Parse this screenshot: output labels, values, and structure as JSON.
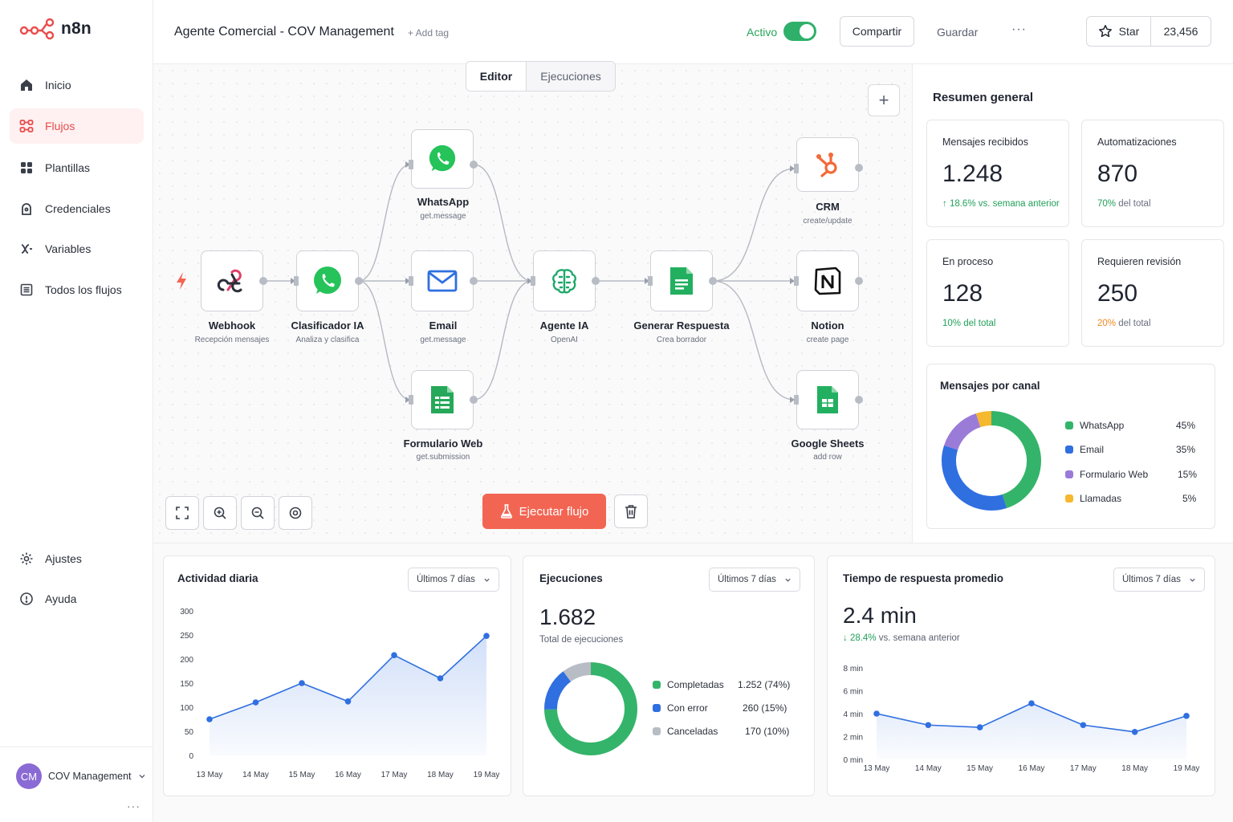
{
  "app": {
    "name": "n8n",
    "brand_color": "#ea4b4b"
  },
  "sidebar": {
    "items": [
      {
        "label": "Inicio",
        "icon": "home-icon"
      },
      {
        "label": "Flujos",
        "icon": "flows-icon",
        "active": true
      },
      {
        "label": "Plantillas",
        "icon": "templates-icon"
      },
      {
        "label": "Credenciales",
        "icon": "credentials-icon"
      },
      {
        "label": "Variables",
        "icon": "variables-icon"
      },
      {
        "label": "Todos los flujos",
        "icon": "all-flows-icon"
      }
    ],
    "bottom_items": [
      {
        "label": "Ajustes",
        "icon": "settings-icon"
      },
      {
        "label": "Ayuda",
        "icon": "help-icon"
      }
    ],
    "user": {
      "initials": "CM",
      "name": "COV Management"
    }
  },
  "header": {
    "title": "Agente Comercial - COV Management",
    "add_tag": "+ Add tag",
    "active_label": "Activo",
    "active": true,
    "share": "Compartir",
    "save": "Guardar",
    "more": "···",
    "star_label": "Star",
    "star_count": "23,456"
  },
  "canvas": {
    "tabs": [
      "Editor",
      "Ejecuciones"
    ],
    "selected_tab": "Editor",
    "nodes": {
      "webhook": {
        "label": "Webhook",
        "sub": "Recepción mensajes"
      },
      "classifier": {
        "label": "Clasificador IA",
        "sub": "Analiza y clasifica"
      },
      "whatsapp": {
        "label": "WhatsApp",
        "sub": "get.message"
      },
      "email": {
        "label": "Email",
        "sub": "get.message"
      },
      "form": {
        "label": "Formulario Web",
        "sub": "get.submission"
      },
      "agent": {
        "label": "Agente IA",
        "sub": "OpenAI"
      },
      "response": {
        "label": "Generar Respuesta",
        "sub": "Crea borrador"
      },
      "crm": {
        "label": "CRM",
        "sub": "create/update"
      },
      "notion": {
        "label": "Notion",
        "sub": "create page"
      },
      "sheets": {
        "label": "Google Sheets",
        "sub": "add row"
      }
    },
    "run_button": "Ejecutar flujo"
  },
  "summary": {
    "title": "Resumen general",
    "stats": [
      {
        "label": "Mensajes recibidos",
        "value": "1.248",
        "note_hi": "↑ 18.6% vs. semana anterior",
        "note_rest": ""
      },
      {
        "label": "Automatizaciones",
        "value": "870",
        "note_hi": "70%",
        "note_rest": " del total"
      },
      {
        "label": "En proceso",
        "value": "128",
        "note_hi": "10% del total",
        "note_rest": ""
      },
      {
        "label": "Requieren revisión",
        "value": "250",
        "note_hi": "20%",
        "note_rest": " del total"
      }
    ],
    "channels": {
      "title": "Mensajes por canal",
      "items": [
        {
          "name": "WhatsApp",
          "pct": "45%",
          "value": 45,
          "color": "#34b46a"
        },
        {
          "name": "Email",
          "pct": "35%",
          "value": 35,
          "color": "#2f6fe0"
        },
        {
          "name": "Formulario Web",
          "pct": "15%",
          "value": 15,
          "color": "#9b7bd8"
        },
        {
          "name": "Llamadas",
          "pct": "5%",
          "value": 5,
          "color": "#f5b82e"
        }
      ]
    }
  },
  "activity": {
    "title": "Actividad diaria",
    "range": "Últimos 7 días",
    "chart_data": {
      "type": "area",
      "categories": [
        "13 May",
        "14 May",
        "15 May",
        "16 May",
        "17 May",
        "18 May",
        "19 May"
      ],
      "values": [
        75,
        110,
        150,
        112,
        208,
        160,
        248
      ],
      "yticks": [
        "300",
        "250",
        "200",
        "150",
        "100",
        "50",
        "0"
      ],
      "ylim": [
        0,
        300
      ],
      "color": "#2f6fe0"
    }
  },
  "executions": {
    "title": "Ejecuciones",
    "range": "Últimos 7 días",
    "total": "1.682",
    "total_label": "Total de ejecuciones",
    "items": [
      {
        "name": "Completadas",
        "display": "1.252 (74%)",
        "value": 74,
        "color": "#34b46a"
      },
      {
        "name": "Con error",
        "display": "260 (15%)",
        "value": 15,
        "color": "#2f6fe0"
      },
      {
        "name": "Canceladas",
        "display": "170 (10%)",
        "value": 10,
        "color": "#b8bcc5"
      }
    ]
  },
  "response_time": {
    "title": "Tiempo de respuesta promedio",
    "range": "Últimos 7 días",
    "value": "2.4 min",
    "change_hi": "↓ 28.4%",
    "change_rest": " vs. semana anterior",
    "chart_data": {
      "type": "line",
      "categories": [
        "13 May",
        "14 May",
        "15 May",
        "16 May",
        "17 May",
        "18 May",
        "19 May"
      ],
      "values": [
        4.0,
        3.0,
        2.8,
        4.9,
        3.0,
        2.4,
        3.8
      ],
      "yticks": [
        "8 min",
        "6 min",
        "4 min",
        "2 min",
        "0 min"
      ],
      "ylim": [
        0,
        8
      ],
      "color": "#2f6fe0"
    }
  }
}
